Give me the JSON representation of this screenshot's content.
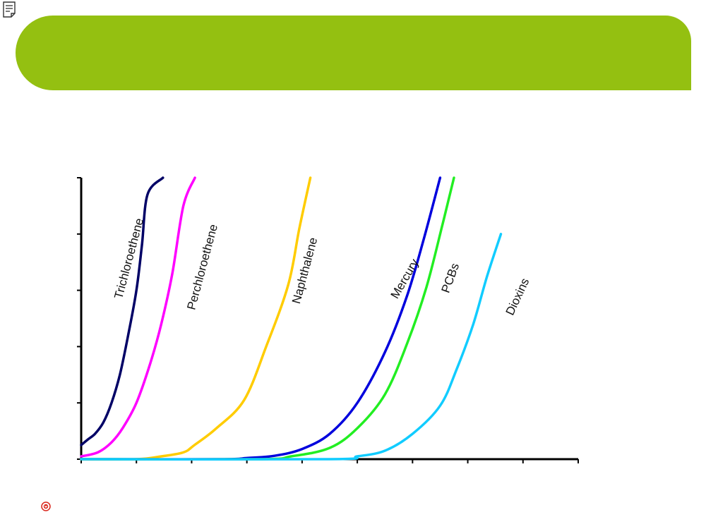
{
  "colors": {
    "banner": "#94c011",
    "background": "#ffffff",
    "axis": "#000000",
    "nav_icon": "#d9261c"
  },
  "icons": {
    "top_left": "note-icon",
    "bottom_left": "nav-circle-icon"
  },
  "chart_data": {
    "type": "line",
    "xlabel": "",
    "ylabel": "",
    "xlim": [
      0,
      9
    ],
    "ylim": [
      0,
      5
    ],
    "x_tick_count": 10,
    "y_tick_count": 6,
    "grid": false,
    "legend": "inline-rotated",
    "series": [
      {
        "name": "Trichloroethene",
        "color": "#000066",
        "label_angle": -75,
        "points": [
          [
            0,
            0.25
          ],
          [
            0.12,
            0.35
          ],
          [
            0.25,
            0.45
          ],
          [
            0.4,
            0.65
          ],
          [
            0.55,
            1.0
          ],
          [
            0.7,
            1.5
          ],
          [
            0.85,
            2.2
          ],
          [
            1.0,
            3.0
          ],
          [
            1.1,
            3.8
          ],
          [
            1.2,
            4.7
          ],
          [
            1.48,
            5.0
          ]
        ]
      },
      {
        "name": "Perchloroethene",
        "color": "#ff00ff",
        "label_angle": -75,
        "points": [
          [
            0,
            0.05
          ],
          [
            0.3,
            0.12
          ],
          [
            0.55,
            0.3
          ],
          [
            0.75,
            0.55
          ],
          [
            1.0,
            1.0
          ],
          [
            1.25,
            1.7
          ],
          [
            1.45,
            2.4
          ],
          [
            1.65,
            3.3
          ],
          [
            1.85,
            4.5
          ],
          [
            2.06,
            5.0
          ]
        ]
      },
      {
        "name": "Naphthalene",
        "color": "#ffcc00",
        "label_angle": -75,
        "points": [
          [
            0,
            0.0
          ],
          [
            1.0,
            0.0
          ],
          [
            1.45,
            0.05
          ],
          [
            1.85,
            0.12
          ],
          [
            2.05,
            0.25
          ],
          [
            2.45,
            0.55
          ],
          [
            2.95,
            1.05
          ],
          [
            3.35,
            2.0
          ],
          [
            3.75,
            3.1
          ],
          [
            3.95,
            4.1
          ],
          [
            4.15,
            5.0
          ]
        ]
      },
      {
        "name": "Mercury",
        "color": "#0000dd",
        "label_angle": -60,
        "points": [
          [
            0,
            0.0
          ],
          [
            2.5,
            0.0
          ],
          [
            3.0,
            0.02
          ],
          [
            3.5,
            0.06
          ],
          [
            4.0,
            0.18
          ],
          [
            4.5,
            0.45
          ],
          [
            5.0,
            1.0
          ],
          [
            5.5,
            1.9
          ],
          [
            5.9,
            2.9
          ],
          [
            6.2,
            3.9
          ],
          [
            6.5,
            5.0
          ]
        ]
      },
      {
        "name": "PCBs",
        "color": "#22ee22",
        "label_angle": -70,
        "points": [
          [
            0,
            0.0
          ],
          [
            3.2,
            0.0
          ],
          [
            3.8,
            0.05
          ],
          [
            4.5,
            0.2
          ],
          [
            5.0,
            0.55
          ],
          [
            5.5,
            1.15
          ],
          [
            5.9,
            2.05
          ],
          [
            6.25,
            3.05
          ],
          [
            6.55,
            4.2
          ],
          [
            6.75,
            5.0
          ]
        ]
      },
      {
        "name": "Dioxins",
        "color": "#11ccff",
        "label_angle": -65,
        "points": [
          [
            0,
            0.0
          ],
          [
            4.5,
            0.0
          ],
          [
            5.0,
            0.05
          ],
          [
            5.5,
            0.15
          ],
          [
            6.0,
            0.45
          ],
          [
            6.5,
            0.95
          ],
          [
            6.8,
            1.6
          ],
          [
            7.1,
            2.4
          ],
          [
            7.35,
            3.25
          ],
          [
            7.6,
            4.0
          ]
        ]
      }
    ]
  }
}
